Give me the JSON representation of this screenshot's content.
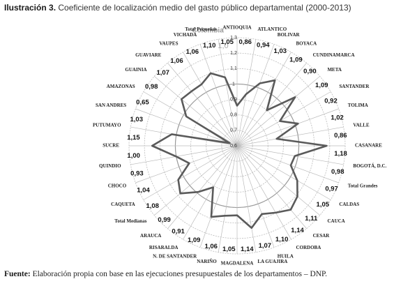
{
  "header": {
    "label": "Ilustración 3.",
    "title": "Coeficiente de localización medio del gasto público departamental (2000-2013)"
  },
  "footer": {
    "label": "Fuente:",
    "text": "Elaboración propia con base en las ejecuciones presupuestales de los departamentos – DNP."
  },
  "chart_data": {
    "type": "radar",
    "categories": [
      "ANTIOQUIA",
      "ATLANTICO",
      "BOLIVAR",
      "BOYACA",
      "CUNDINAMARCA",
      "META",
      "SANTANDER",
      "TOLIMA",
      "VALLE",
      "CASANARE",
      "BOGOTÁ, D.C.",
      "Total Grandes",
      "CALDAS",
      "CAUCA",
      "CESAR",
      "CORDOBA",
      "HUILA",
      "LA GUAJIRA",
      "MAGDALENA",
      "NARIÑO",
      "N. DE SANTANDER",
      "RISARALDA",
      "ARAUCA",
      "Total Medianas",
      "CAQUETA",
      "CHOCO",
      "QUINDIO",
      "SUCRE",
      "PUTUMAYO",
      "SAN ANDRES",
      "AMAZONAS",
      "GUAINIA",
      "GUAVIARE",
      "VAUPES",
      "VICHADA",
      "Total Pequeñas"
    ],
    "values": [
      0.86,
      0.94,
      1.03,
      1.09,
      0.9,
      1.09,
      0.92,
      1.02,
      0.86,
      1.18,
      0.98,
      0.97,
      1.05,
      1.11,
      1.14,
      1.1,
      1.07,
      1.14,
      1.05,
      1.06,
      1.09,
      0.91,
      0.99,
      1.08,
      1.04,
      0.93,
      1.0,
      1.15,
      1.03,
      0.65,
      0.98,
      1.07,
      1.06,
      1.06,
      1.1,
      1.05
    ],
    "value_labels": [
      "0,86",
      "0,94",
      "1,03",
      "1,09",
      "0,90",
      "1,09",
      "0,92",
      "1,02",
      "0,86",
      "1,18",
      "0,98",
      "0,97",
      "1,05",
      "1,11",
      "1,14",
      "1,10",
      "1,07",
      "1,14",
      "1,05",
      "1,06",
      "1,09",
      "0,91",
      "0,99",
      "1,08",
      "1,04",
      "0,93",
      "1,00",
      "1,15",
      "1,03",
      "0,65",
      "0,98",
      "1,07",
      "1,06",
      "1,06",
      "1,10",
      "1,05"
    ],
    "color": "#5a5a5a",
    "ylim": [
      0.6,
      1.3
    ],
    "yticks": [
      {
        "value": 0.6,
        "label": "0,6"
      },
      {
        "value": 0.7,
        "label": "0,7"
      },
      {
        "value": 0.8,
        "label": "0,8"
      },
      {
        "value": 0.9,
        "label": "0,9"
      },
      1,
      {
        "value": 1.1,
        "label": "1,1"
      },
      {
        "value": 1.2,
        "label": "1,2"
      },
      {
        "value": 1.3,
        "label": "1,3"
      }
    ],
    "reference": {
      "name": "Colombia",
      "value": 1.0,
      "label": "1,0"
    },
    "grid": true
  }
}
